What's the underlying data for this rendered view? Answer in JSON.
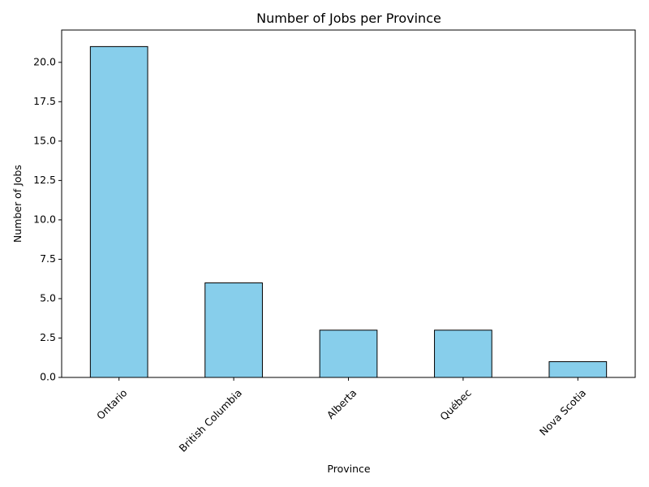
{
  "chart_data": {
    "type": "bar",
    "title": "Number of Jobs per Province",
    "xlabel": "Province",
    "ylabel": "Number of Jobs",
    "categories": [
      "Ontario",
      "British Columbia",
      "Alberta",
      "Québec",
      "Nova Scotia"
    ],
    "values": [
      21,
      6,
      3,
      3,
      1
    ],
    "ylim": [
      0,
      22.05
    ],
    "yticks": [
      0.0,
      2.5,
      5.0,
      7.5,
      10.0,
      12.5,
      15.0,
      17.5,
      20.0
    ],
    "ytick_labels": [
      "0.0",
      "2.5",
      "5.0",
      "7.5",
      "10.0",
      "12.5",
      "15.0",
      "17.5",
      "20.0"
    ],
    "x_tick_rotation_deg": 45,
    "grid": false,
    "legend": "none",
    "bar_color": "#87CEEB",
    "bar_edge_color": "#000000"
  }
}
